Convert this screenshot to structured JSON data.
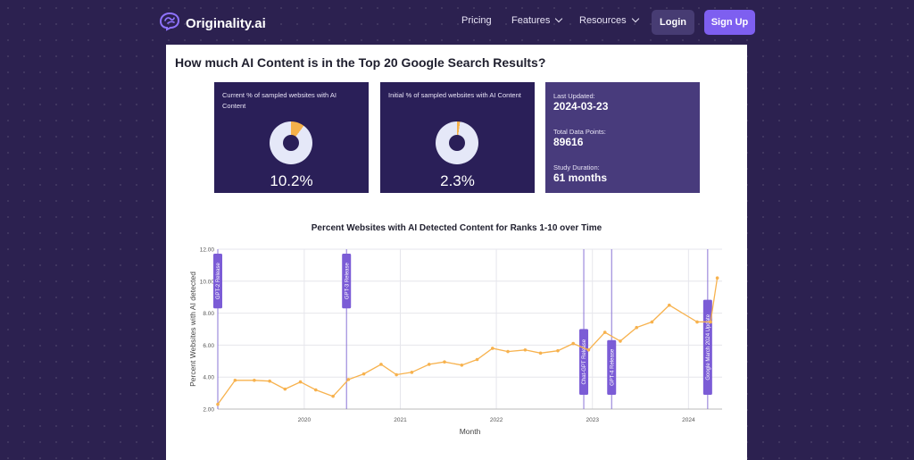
{
  "nav": {
    "brand": "Originality.ai",
    "links": [
      "Pricing",
      "Features",
      "Resources"
    ],
    "login": "Login",
    "signup": "Sign Up"
  },
  "main": {
    "heading": "How much AI Content is in the Top 20 Google Search Results?",
    "cards": [
      {
        "label": "Current % of sampled websites with AI Content",
        "value": "10.2%",
        "fraction": 0.102
      },
      {
        "label": "Initial % of sampled websites with AI Content",
        "value": "2.3%",
        "fraction": 0.023
      }
    ],
    "meta": {
      "last_updated_label": "Last Updated:",
      "last_updated": "2024-03-23",
      "data_points_label": "Total Data Points:",
      "data_points": "89616",
      "duration_label": "Study Duration:",
      "duration": "61 months"
    }
  },
  "colors": {
    "accent": "#7e5ff0",
    "donut_track": "#e5e8f8",
    "donut_fill": "#f5b14a",
    "line": "#f7b24e",
    "annotation": "#7b5cd6"
  },
  "chart_data": {
    "type": "line",
    "title": "Percent Websites with AI Detected Content for Ranks 1-10 over Time",
    "xlabel": "Month",
    "ylabel": "Percent Websites with AI detected",
    "ylim": [
      2,
      12
    ],
    "yticks": [
      "2.00",
      "4.00",
      "6.00",
      "8.00",
      "10.00",
      "12.00"
    ],
    "xlim": [
      2019.1,
      2024.35
    ],
    "xticks": [
      "2020",
      "2021",
      "2022",
      "2023",
      "2024"
    ],
    "series": [
      {
        "x": [
          2019.1,
          2019.28,
          2019.48,
          2019.64,
          2019.8,
          2019.96,
          2020.12,
          2020.3,
          2020.46,
          2020.62,
          2020.8,
          2020.96,
          2021.12,
          2021.3,
          2021.46,
          2021.64,
          2021.8,
          2021.96,
          2022.12,
          2022.3,
          2022.46,
          2022.64,
          2022.8,
          2022.96,
          2023.13,
          2023.29,
          2023.46,
          2023.62,
          2023.8,
          2024.09,
          2024.23,
          2024.3
        ],
        "values": [
          2.3,
          3.8,
          3.8,
          3.75,
          3.25,
          3.7,
          3.2,
          2.8,
          3.85,
          4.2,
          4.8,
          4.15,
          4.3,
          4.8,
          4.95,
          4.75,
          5.1,
          5.8,
          5.6,
          5.7,
          5.5,
          5.65,
          6.1,
          5.7,
          6.8,
          6.25,
          7.1,
          7.45,
          8.5,
          7.45,
          7.45,
          10.2
        ]
      }
    ],
    "annotations": [
      {
        "label": "GPT-2 Release",
        "x": 2019.1,
        "pos": "top"
      },
      {
        "label": "GPT-3 Release",
        "x": 2020.44,
        "pos": "top"
      },
      {
        "label": "Chat-GPT Release",
        "x": 2022.91,
        "pos": "bottom"
      },
      {
        "label": "GPT-4 Release",
        "x": 2023.2,
        "pos": "bottom"
      },
      {
        "label": "Google March 2024 Update",
        "x": 2024.2,
        "pos": "bottom"
      }
    ]
  }
}
